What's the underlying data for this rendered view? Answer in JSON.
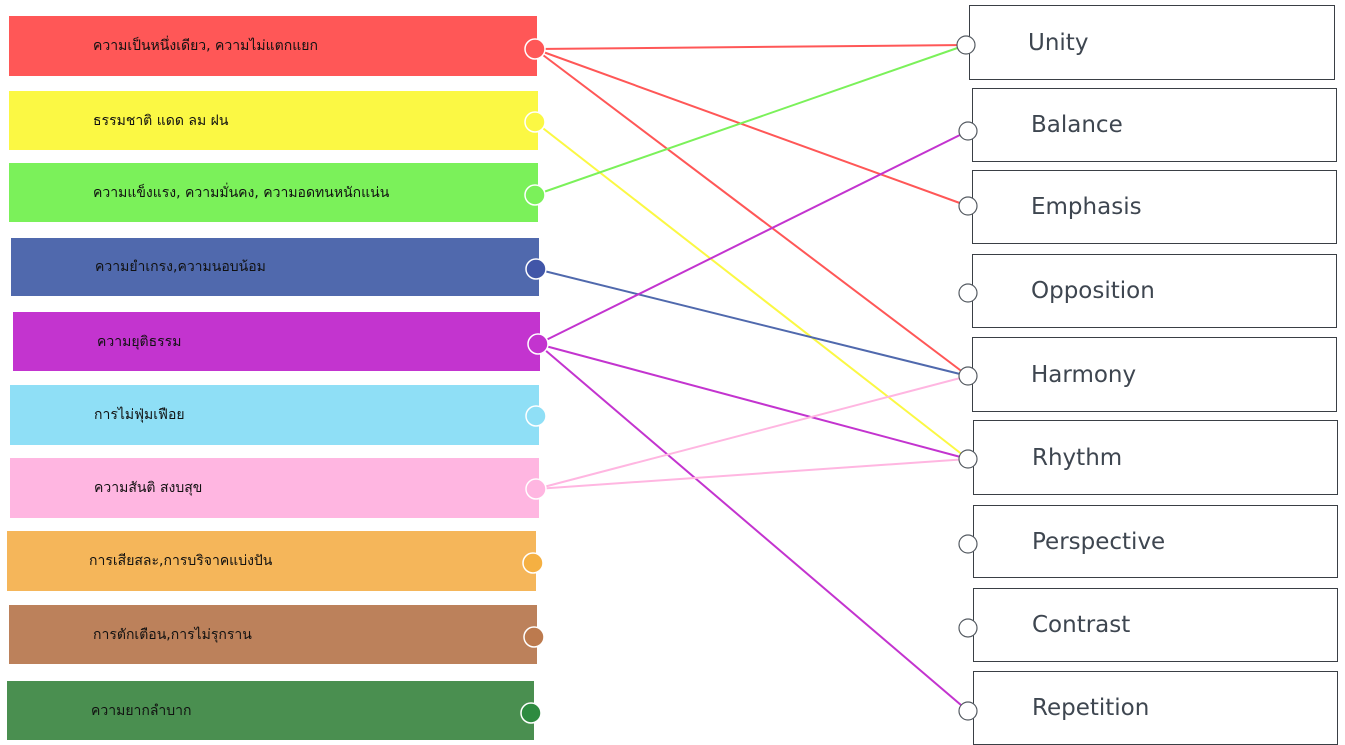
{
  "left_items": [
    {
      "label": "ความเป็นหนึ่งเดียว,  ความไม่แตกแยก",
      "color": "#ff5757",
      "dot_color": "#ff5757"
    },
    {
      "label": "ธรรมชาติ แดด ลม ฝน",
      "color": "#fbf844",
      "dot_color": "#fbf844"
    },
    {
      "label": "ความแข็งแรง, ความมั่นคง, ความอดทนหนักแน่น",
      "color": "#7bf15a",
      "dot_color": "#7bf15a"
    },
    {
      "label": "ความยำเกรง,ความนอบน้อม",
      "color": "#5069ad",
      "dot_color": "#4156a8"
    },
    {
      "label": "ความยุติธรรม",
      "color": "#c334cf",
      "dot_color": "#c334cf"
    },
    {
      "label": "การไม่ฟุ่มเฟือย",
      "color": "#8fdff6",
      "dot_color": "#8fdff6"
    },
    {
      "label": "ความสันติ สงบสุข",
      "color": "#ffb6e1",
      "dot_color": "#ffb6e1"
    },
    {
      "label": "การเสียสละ,การบริจาคแบ่งปัน",
      "color": "#f5b65a",
      "dot_color": "#f5b042"
    },
    {
      "label": "การตักเตือน,การไม่รุกราน",
      "color": "#bc815b",
      "dot_color": "#bc7a4e"
    },
    {
      "label": "ความยากลำบาก",
      "color": "#4a8f50",
      "dot_color": "#2e8b40"
    }
  ],
  "right_items": [
    {
      "label": "Unity"
    },
    {
      "label": "Balance"
    },
    {
      "label": "Emphasis"
    },
    {
      "label": "Opposition"
    },
    {
      "label": "Harmony"
    },
    {
      "label": "Rhythm"
    },
    {
      "label": "Perspective"
    },
    {
      "label": "Contrast"
    },
    {
      "label": "Repetition"
    }
  ],
  "connections": [
    {
      "from": 0,
      "to": 0,
      "color": "#ff5757"
    },
    {
      "from": 0,
      "to": 2,
      "color": "#ff5757"
    },
    {
      "from": 0,
      "to": 4,
      "color": "#ff5757"
    },
    {
      "from": 1,
      "to": 5,
      "color": "#fbf844"
    },
    {
      "from": 2,
      "to": 0,
      "color": "#7bf15a"
    },
    {
      "from": 3,
      "to": 4,
      "color": "#5069ad"
    },
    {
      "from": 4,
      "to": 1,
      "color": "#c334cf"
    },
    {
      "from": 4,
      "to": 5,
      "color": "#c334cf"
    },
    {
      "from": 4,
      "to": 8,
      "color": "#c334cf"
    },
    {
      "from": 6,
      "to": 4,
      "color": "#ffb6e1"
    },
    {
      "from": 6,
      "to": 5,
      "color": "#ffb6e1"
    }
  ]
}
